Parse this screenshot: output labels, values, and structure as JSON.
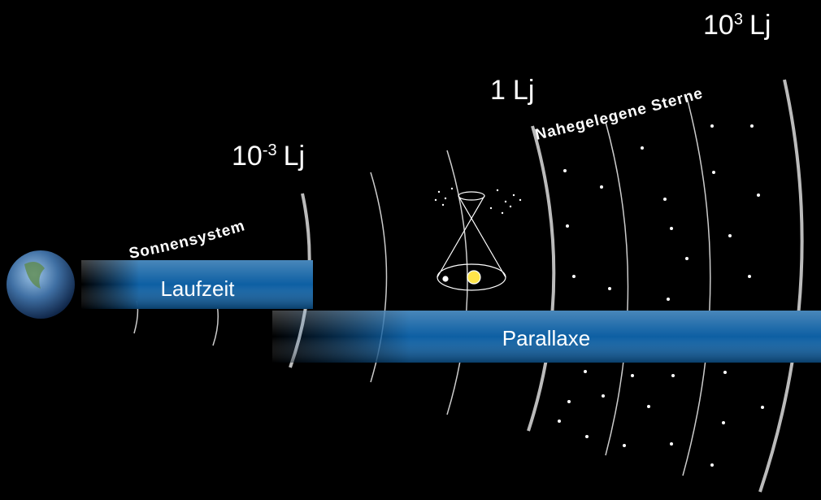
{
  "scale_labels": [
    {
      "base": "10",
      "exponent": "3",
      "unit": "Lj"
    },
    {
      "base": "1",
      "unit": "Lj"
    },
    {
      "base": "10",
      "exponent": "-3",
      "unit": "Lj"
    }
  ],
  "regions": [
    "Sonnensystem",
    "Nahegelegene Sterne"
  ],
  "methods": [
    "Laufzeit",
    "Parallaxe"
  ]
}
